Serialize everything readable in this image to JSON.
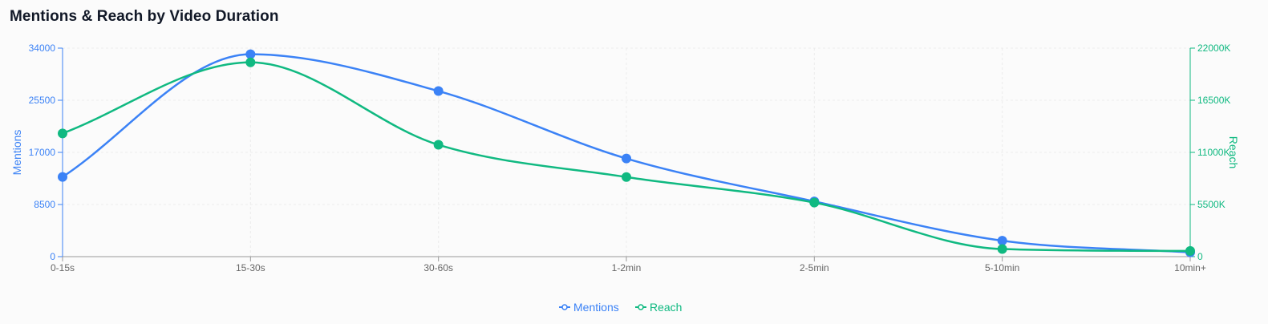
{
  "chart_data": {
    "type": "line",
    "title": "Mentions & Reach by Video Duration",
    "categories": [
      "0-15s",
      "15-30s",
      "30-60s",
      "1-2min",
      "2-5min",
      "5-10min",
      "10min+"
    ],
    "series": [
      {
        "name": "Mentions",
        "axis": "left",
        "color": "#3b82f6",
        "values": [
          13000,
          33000,
          27000,
          16000,
          9000,
          2600,
          700
        ]
      },
      {
        "name": "Reach",
        "axis": "right",
        "color": "#10b981",
        "values": [
          13000000,
          20500000,
          11800000,
          8400000,
          5700000,
          800000,
          600000
        ]
      }
    ],
    "y_left": {
      "label": "Mentions",
      "ylim": [
        0,
        34000
      ],
      "ticks": [
        {
          "value": 0,
          "label": "0"
        },
        {
          "value": 8500,
          "label": "8500"
        },
        {
          "value": 17000,
          "label": "17000"
        },
        {
          "value": 25500,
          "label": "25500"
        },
        {
          "value": 34000,
          "label": "34000"
        }
      ]
    },
    "y_right": {
      "label": "Reach",
      "ylim": [
        0,
        22000000
      ],
      "ticks": [
        {
          "value": 0,
          "label": "0"
        },
        {
          "value": 5500000,
          "label": "5500K"
        },
        {
          "value": 11000000,
          "label": "11000K"
        },
        {
          "value": 16500000,
          "label": "16500K"
        },
        {
          "value": 22000000,
          "label": "22000K"
        }
      ]
    },
    "grid": true,
    "legend_position": "bottom-center"
  }
}
